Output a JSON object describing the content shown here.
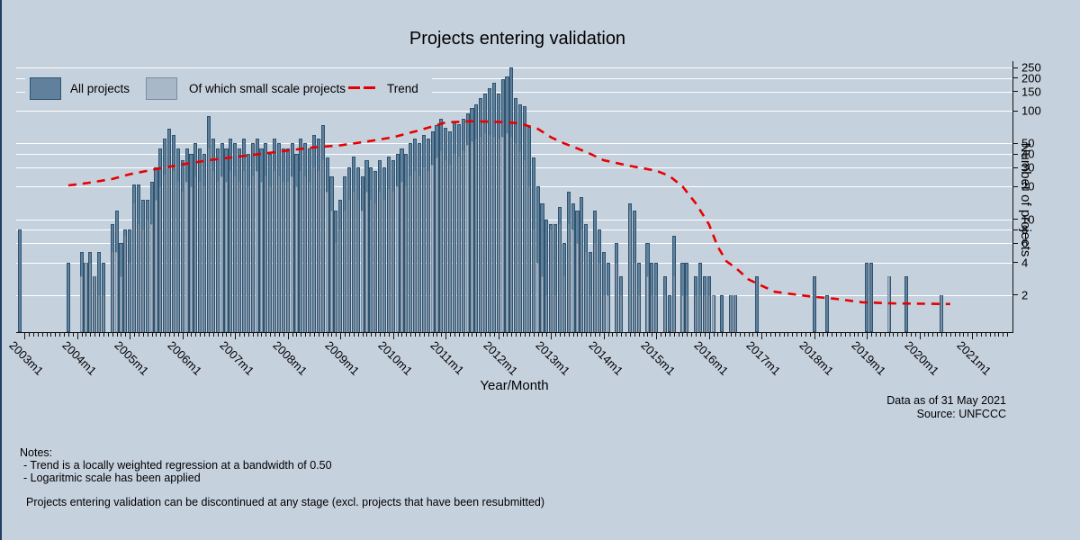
{
  "title": "Projects entering validation",
  "legend": {
    "all": "All projects",
    "small": "Of which small scale projects",
    "trend": "Trend"
  },
  "axes": {
    "y_label": "Number of projects",
    "x_label": "Year/Month",
    "y_scale": "log",
    "y_ticks": [
      250,
      200,
      150,
      100,
      50,
      40,
      30,
      20,
      10,
      8,
      6,
      4,
      2
    ],
    "x_tick_labels": [
      "2003m1",
      "2004m1",
      "2005m1",
      "2006m1",
      "2007m1",
      "2008m1",
      "2009m1",
      "2010m1",
      "2011m1",
      "2012m1",
      "2013m1",
      "2014m1",
      "2015m1",
      "2016m1",
      "2017m1",
      "2018m1",
      "2019m1",
      "2020m1",
      "2021m1"
    ]
  },
  "caption": {
    "line1": "Data as of 31 May 2021",
    "line2": "Source: UNFCCC"
  },
  "notes": {
    "header": "Notes:",
    "line1": " - Trend is a locally weighted regression at a bandwidth of 0.50",
    "line2": " - Logaritmic scale has been applied",
    "line3": " Projects entering validation can be discontinued at any stage (excl. projects that have been resubmitted)"
  },
  "colors": {
    "background": "#c6d1de",
    "bar_all": "#60809b",
    "bar_all_border": "#2e5470",
    "bar_small": "#a9b8c8",
    "bar_small_border": "#7b8ea2",
    "trend": "#e60000",
    "gridline": "#ffffff",
    "axis": "#111111",
    "edge_strip": "#1f3f63"
  },
  "chart_data": {
    "type": "bar",
    "title": "Projects entering validation",
    "xlabel": "Year/Month",
    "ylabel": "Number of projects",
    "y_scale": "log",
    "ylim": [
      1,
      260
    ],
    "grid": true,
    "legend_position": "top-left",
    "start_month": "2002m12",
    "months_per_point": 1,
    "series": [
      {
        "name": "All projects",
        "values": [
          8,
          0,
          0,
          0,
          0,
          0,
          0,
          0,
          0,
          0,
          0,
          4,
          0,
          0,
          5,
          4,
          5,
          3,
          5,
          4,
          0,
          9,
          12,
          6,
          8,
          8,
          21,
          21,
          15,
          15,
          22,
          30,
          45,
          55,
          68,
          60,
          45,
          35,
          45,
          40,
          50,
          45,
          40,
          90,
          55,
          45,
          50,
          45,
          55,
          50,
          45,
          55,
          40,
          50,
          55,
          45,
          50,
          40,
          55,
          50,
          45,
          45,
          50,
          40,
          55,
          50,
          45,
          60,
          55,
          74,
          37,
          25,
          12,
          15,
          25,
          30,
          38,
          30,
          25,
          35,
          30,
          28,
          35,
          30,
          38,
          35,
          40,
          45,
          40,
          50,
          55,
          50,
          60,
          55,
          65,
          74,
          84,
          70,
          65,
          80,
          75,
          85,
          95,
          105,
          115,
          130,
          145,
          160,
          180,
          143,
          194,
          207,
          248,
          131,
          114,
          110,
          71,
          37,
          20,
          14,
          10,
          9,
          9,
          13,
          6,
          18,
          14,
          12,
          16,
          9,
          5,
          12,
          8,
          5,
          4,
          0,
          6,
          3,
          0,
          14,
          12,
          4,
          0,
          6,
          4,
          4,
          0,
          3,
          2,
          7,
          0,
          4,
          4,
          0,
          3,
          4,
          3,
          3,
          2,
          0,
          2,
          0,
          2,
          2,
          0,
          0,
          0,
          0,
          3,
          0,
          0,
          0,
          0,
          0,
          0,
          0,
          0,
          0,
          0,
          0,
          0,
          3,
          0,
          0,
          2,
          0,
          0,
          0,
          0,
          0,
          0,
          0,
          0,
          4,
          4,
          0,
          0,
          0,
          3,
          0,
          0,
          0,
          3,
          0,
          0,
          0,
          0,
          0,
          0,
          0,
          2,
          0,
          0,
          0,
          0,
          0,
          0
        ]
      },
      {
        "name": "Of which small scale projects",
        "values": [
          0,
          0,
          0,
          0,
          0,
          0,
          0,
          0,
          0,
          0,
          0,
          0,
          0,
          0,
          3,
          4,
          4,
          3,
          2,
          2,
          0,
          5,
          5,
          3,
          7,
          4,
          14,
          9,
          8,
          10,
          9,
          15,
          20,
          26,
          30,
          28,
          22,
          18,
          22,
          20,
          25,
          22,
          20,
          45,
          28,
          22,
          25,
          22,
          28,
          25,
          22,
          28,
          20,
          25,
          28,
          22,
          25,
          20,
          28,
          25,
          22,
          22,
          25,
          20,
          28,
          25,
          22,
          30,
          28,
          35,
          18,
          12,
          6,
          8,
          12,
          15,
          18,
          15,
          12,
          18,
          15,
          14,
          18,
          15,
          19,
          18,
          20,
          22,
          20,
          25,
          28,
          25,
          30,
          28,
          32,
          37,
          42,
          35,
          32,
          40,
          38,
          42,
          48,
          52,
          55,
          58,
          62,
          60,
          58,
          55,
          58,
          62,
          58,
          50,
          42,
          35,
          20,
          8,
          4,
          3,
          2,
          8,
          2,
          9,
          3,
          9,
          8,
          6,
          8,
          5,
          2,
          6,
          4,
          2,
          2,
          0,
          4,
          2,
          0,
          12,
          4,
          2,
          0,
          3,
          2,
          2,
          0,
          2,
          0,
          3,
          0,
          2,
          2,
          0,
          2,
          2,
          2,
          2,
          2,
          0,
          0,
          0,
          2,
          2,
          0,
          0,
          0,
          0,
          0,
          0,
          0,
          0,
          0,
          0,
          0,
          0,
          0,
          0,
          0,
          0,
          0,
          0,
          0,
          0,
          0,
          0,
          0,
          0,
          0,
          0,
          0,
          0,
          0,
          0,
          0,
          0,
          0,
          0,
          3,
          0,
          0,
          0,
          0,
          0,
          0,
          0,
          0,
          0,
          0,
          0,
          2,
          0,
          0,
          0,
          0,
          0,
          0
        ]
      }
    ],
    "trend": {
      "name": "Trend",
      "points": [
        [
          11,
          20.5
        ],
        [
          15,
          21.5
        ],
        [
          21,
          23.5
        ],
        [
          25,
          26
        ],
        [
          31,
          29
        ],
        [
          37,
          32
        ],
        [
          43,
          35
        ],
        [
          49,
          37.5
        ],
        [
          55,
          40
        ],
        [
          61,
          43
        ],
        [
          67,
          46
        ],
        [
          73,
          48
        ],
        [
          79,
          52
        ],
        [
          85,
          57
        ],
        [
          91,
          66
        ],
        [
          97,
          78
        ],
        [
          103,
          80
        ],
        [
          109,
          79
        ],
        [
          113,
          77
        ],
        [
          115,
          74
        ],
        [
          118,
          68
        ],
        [
          121,
          57
        ],
        [
          124,
          50
        ],
        [
          127,
          45
        ],
        [
          130,
          40
        ],
        [
          133,
          35
        ],
        [
          139,
          31
        ],
        [
          145,
          28
        ],
        [
          148,
          25
        ],
        [
          151,
          20
        ],
        [
          154,
          14
        ],
        [
          157,
          9
        ],
        [
          159,
          5.6
        ],
        [
          161,
          4.1
        ],
        [
          163,
          3.6
        ],
        [
          166,
          2.8
        ],
        [
          169,
          2.45
        ],
        [
          172,
          2.15
        ],
        [
          180,
          1.95
        ],
        [
          186,
          1.85
        ],
        [
          192,
          1.72
        ],
        [
          199,
          1.68
        ],
        [
          212,
          1.66
        ]
      ]
    }
  }
}
